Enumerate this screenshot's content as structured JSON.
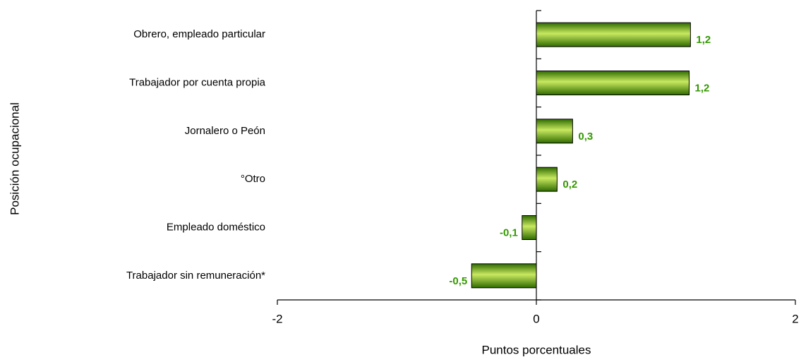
{
  "chart_data": {
    "type": "bar",
    "orientation": "horizontal",
    "x_label": "Puntos porcentuales",
    "y_label": "Posición ocupacional",
    "categories": [
      "Obrero, empleado particular",
      "Trabajador por cuenta propia",
      "Jornalero o Peón",
      "°Otro",
      "Empleado doméstico",
      "Trabajador sin remuneración*"
    ],
    "values": [
      1.19,
      1.18,
      0.28,
      0.16,
      -0.11,
      -0.5
    ],
    "value_labels": [
      "1,2",
      "1,2",
      "0,3",
      "0,2",
      "-0,1",
      "-0,5"
    ],
    "color": "#5a9e00",
    "label_color": "#339900",
    "xlim": [
      -2,
      2
    ],
    "xticks": [
      -2,
      0,
      2
    ]
  }
}
